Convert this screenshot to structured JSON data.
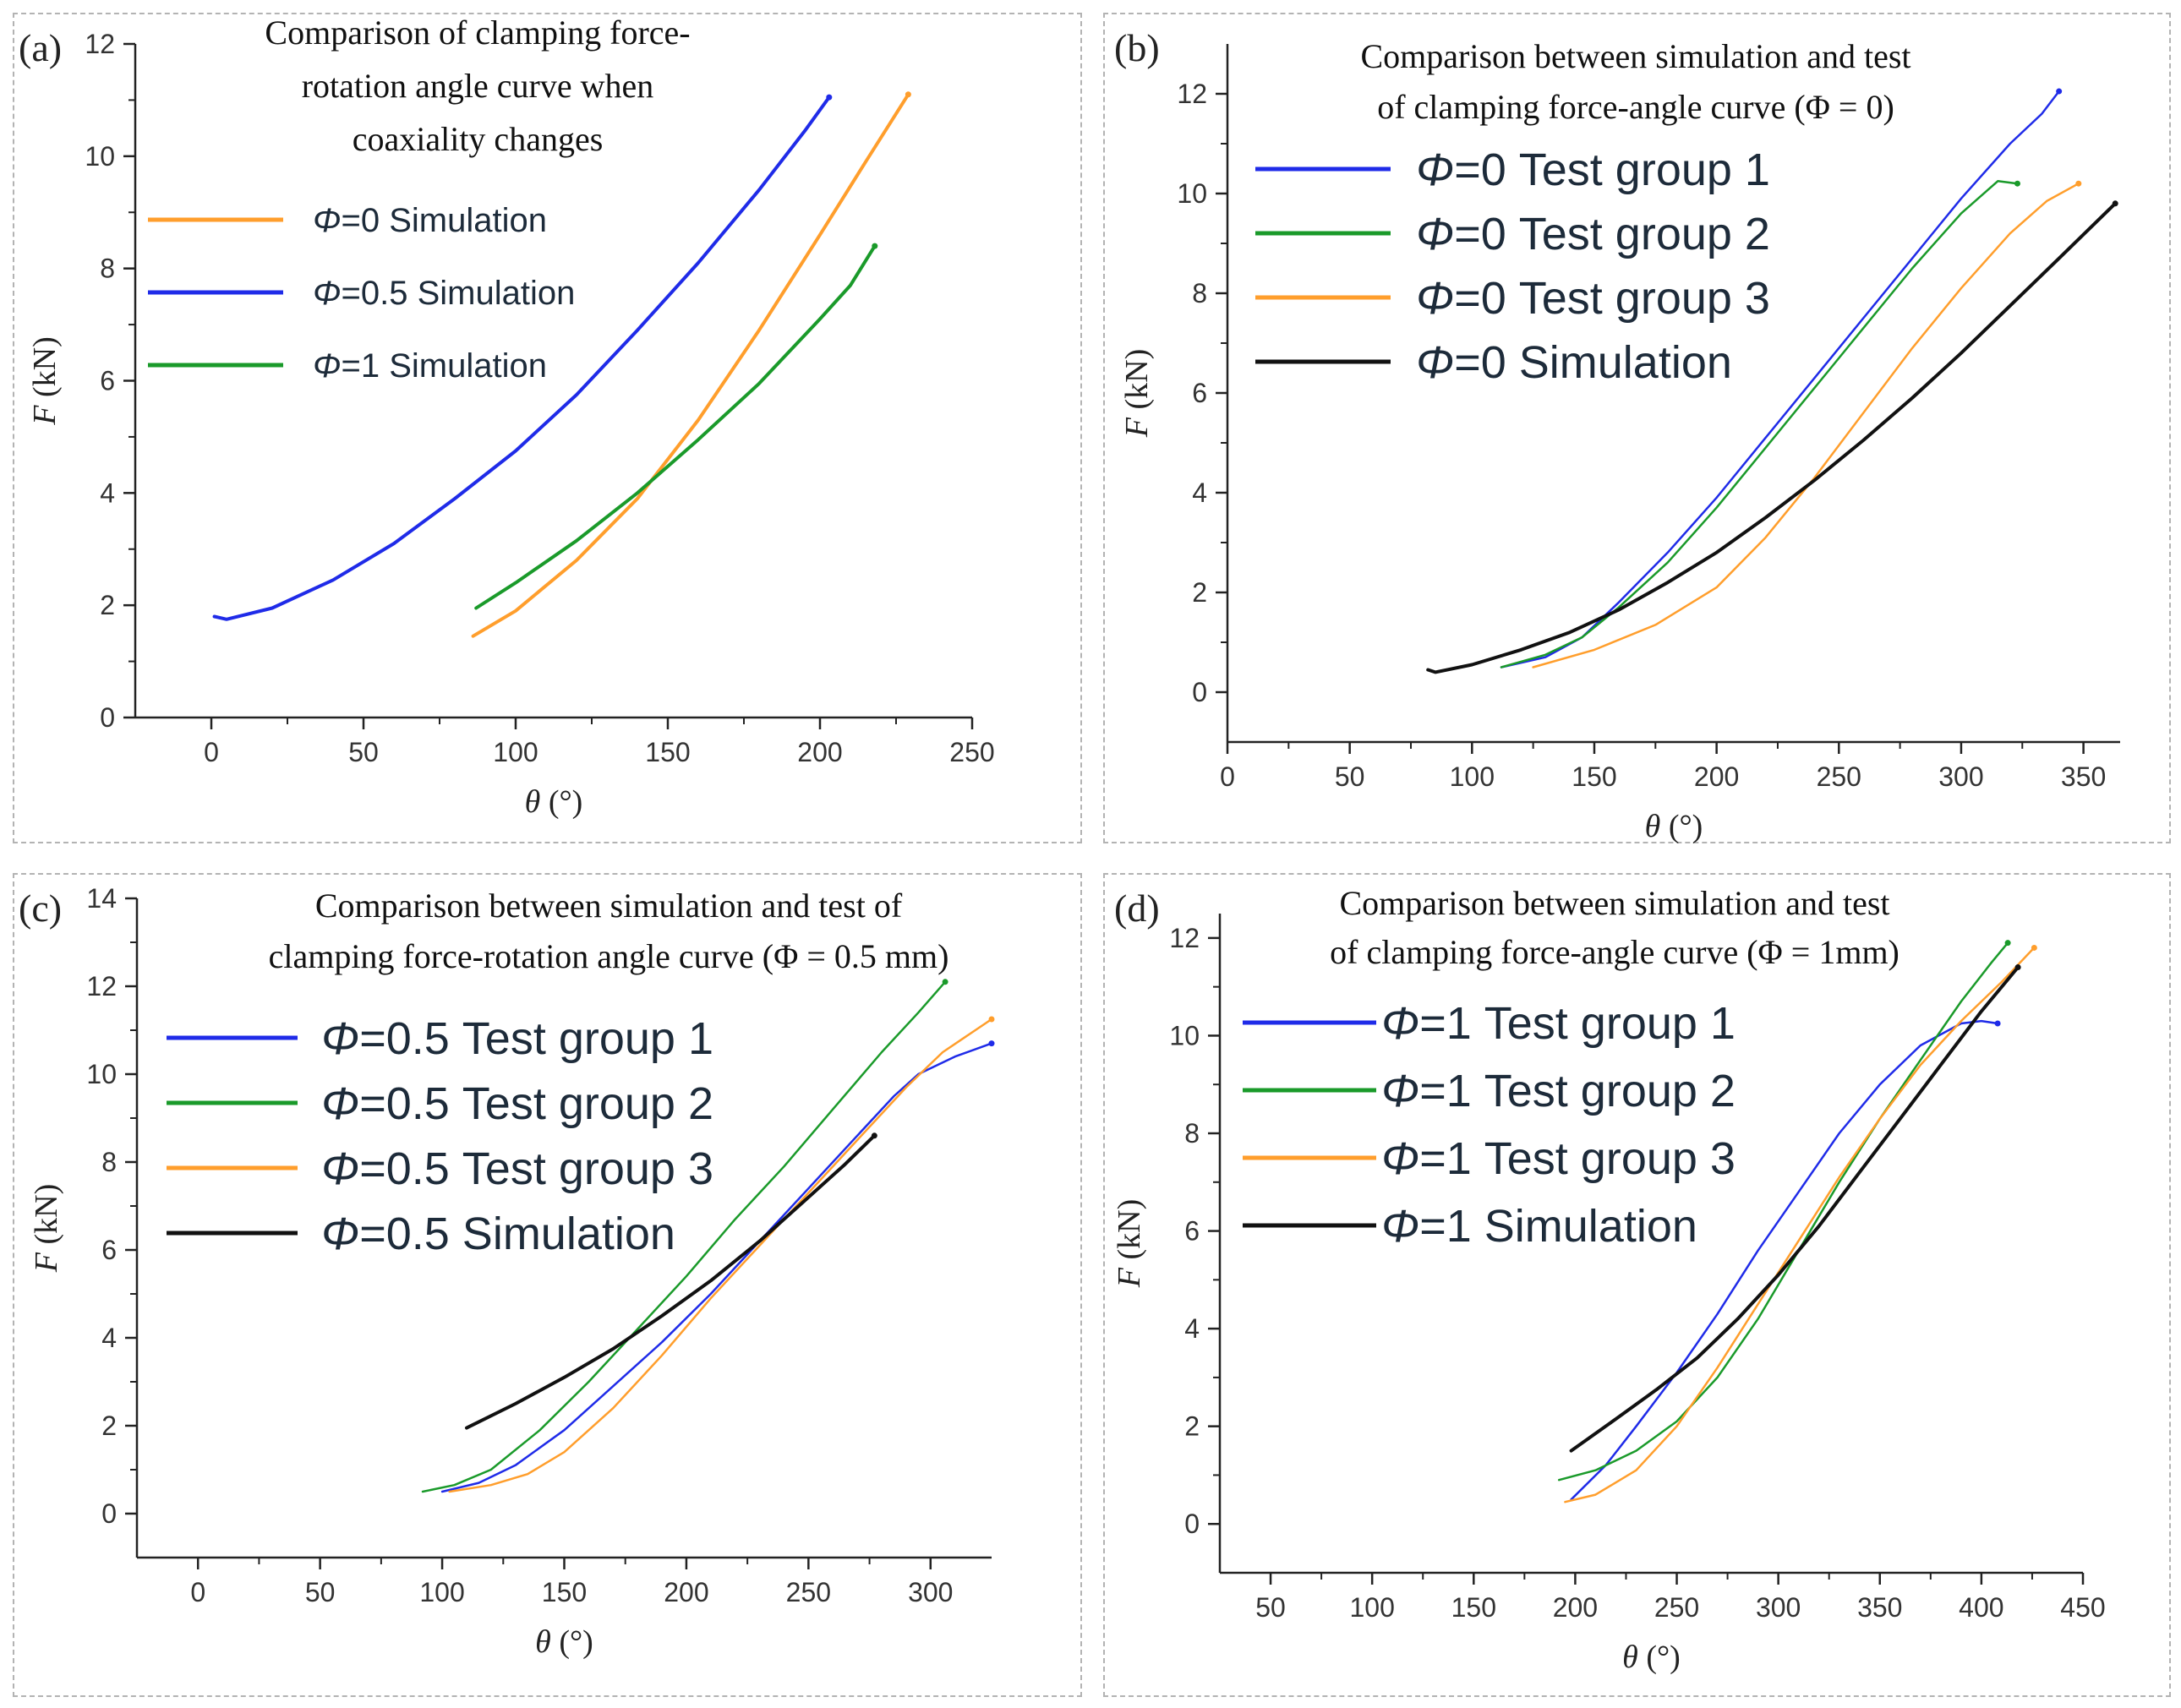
{
  "chart_data": [
    {
      "panel": "(a)",
      "type": "line",
      "title": [
        "Comparison of clamping force-",
        "rotation angle curve when",
        "coaxiality changes"
      ],
      "xlabel": "θ (°)",
      "ylabel": "F (kN)",
      "xlim": [
        -25,
        250
      ],
      "ylim": [
        0,
        12
      ],
      "xticks": [
        0,
        50,
        100,
        150,
        200,
        250
      ],
      "yticks": [
        0,
        2,
        4,
        6,
        8,
        10,
        12
      ],
      "legend_position": "top-left",
      "series": [
        {
          "name": "Φ=0 Simulation",
          "color": "#ff9e2c",
          "points": [
            [
              86,
              1.45
            ],
            [
              100,
              1.9
            ],
            [
              120,
              2.8
            ],
            [
              140,
              3.9
            ],
            [
              160,
              5.3
            ],
            [
              180,
              6.9
            ],
            [
              200,
              8.6
            ],
            [
              215,
              9.9
            ],
            [
              229,
              11.1
            ]
          ]
        },
        {
          "name": "Φ=0.5 Simulation",
          "color": "#1f2be8",
          "points": [
            [
              1,
              1.8
            ],
            [
              5,
              1.75
            ],
            [
              20,
              1.95
            ],
            [
              40,
              2.45
            ],
            [
              60,
              3.1
            ],
            [
              80,
              3.9
            ],
            [
              100,
              4.75
            ],
            [
              120,
              5.75
            ],
            [
              140,
              6.9
            ],
            [
              160,
              8.1
            ],
            [
              180,
              9.4
            ],
            [
              195,
              10.45
            ],
            [
              203,
              11.05
            ]
          ]
        },
        {
          "name": "Φ=1 Simulation",
          "color": "#1a9a2a",
          "points": [
            [
              87,
              1.95
            ],
            [
              100,
              2.4
            ],
            [
              120,
              3.15
            ],
            [
              140,
              4.0
            ],
            [
              160,
              4.95
            ],
            [
              180,
              5.95
            ],
            [
              200,
              7.1
            ],
            [
              210,
              7.7
            ],
            [
              218,
              8.4
            ]
          ]
        }
      ]
    },
    {
      "panel": "(b)",
      "type": "line",
      "title": [
        "Comparison between simulation and test",
        "of clamping force-angle curve (Φ = 0)"
      ],
      "xlabel": "θ (°)",
      "ylabel": "F (kN)",
      "xlim": [
        0,
        365
      ],
      "ylim": [
        -1,
        13
      ],
      "xticks": [
        0,
        50,
        100,
        150,
        200,
        250,
        300,
        350
      ],
      "yticks": [
        0,
        2,
        4,
        6,
        8,
        10,
        12
      ],
      "legend_position": "top-left",
      "series": [
        {
          "name": "Φ=0 Test group 1",
          "color": "#1f2be8",
          "points": [
            [
              112,
              0.5
            ],
            [
              130,
              0.7
            ],
            [
              145,
              1.1
            ],
            [
              160,
              1.8
            ],
            [
              180,
              2.8
            ],
            [
              200,
              3.9
            ],
            [
              220,
              5.1
            ],
            [
              240,
              6.3
            ],
            [
              260,
              7.5
            ],
            [
              280,
              8.7
            ],
            [
              300,
              9.9
            ],
            [
              320,
              11.0
            ],
            [
              333,
              11.6
            ],
            [
              340,
              12.05
            ]
          ]
        },
        {
          "name": "Φ=0 Test group 2",
          "color": "#1a9a2a",
          "points": [
            [
              112,
              0.5
            ],
            [
              130,
              0.75
            ],
            [
              145,
              1.1
            ],
            [
              160,
              1.7
            ],
            [
              180,
              2.6
            ],
            [
              200,
              3.7
            ],
            [
              220,
              4.9
            ],
            [
              240,
              6.1
            ],
            [
              260,
              7.3
            ],
            [
              280,
              8.5
            ],
            [
              300,
              9.6
            ],
            [
              315,
              10.25
            ],
            [
              323,
              10.2
            ]
          ]
        },
        {
          "name": "Φ=0 Test group 3",
          "color": "#ff9e2c",
          "points": [
            [
              125,
              0.5
            ],
            [
              150,
              0.85
            ],
            [
              175,
              1.35
            ],
            [
              200,
              2.1
            ],
            [
              220,
              3.1
            ],
            [
              240,
              4.3
            ],
            [
              260,
              5.6
            ],
            [
              280,
              6.9
            ],
            [
              300,
              8.1
            ],
            [
              320,
              9.2
            ],
            [
              335,
              9.85
            ],
            [
              348,
              10.2
            ]
          ]
        },
        {
          "name": "Φ=0 Simulation",
          "color": "#111111",
          "points": [
            [
              82,
              0.45
            ],
            [
              85,
              0.4
            ],
            [
              100,
              0.55
            ],
            [
              120,
              0.85
            ],
            [
              140,
              1.2
            ],
            [
              160,
              1.65
            ],
            [
              180,
              2.2
            ],
            [
              200,
              2.8
            ],
            [
              220,
              3.5
            ],
            [
              240,
              4.25
            ],
            [
              260,
              5.05
            ],
            [
              280,
              5.9
            ],
            [
              300,
              6.8
            ],
            [
              320,
              7.75
            ],
            [
              340,
              8.7
            ],
            [
              363,
              9.8
            ]
          ]
        }
      ]
    },
    {
      "panel": "(c)",
      "type": "line",
      "title": [
        "Comparison between simulation and test of",
        "clamping force-rotation angle curve (Φ = 0.5 mm)"
      ],
      "xlabel": "θ (°)",
      "ylabel": "F (kN)",
      "xlim": [
        -25,
        325
      ],
      "ylim": [
        -1,
        14
      ],
      "xticks": [
        0,
        50,
        100,
        150,
        200,
        250,
        300
      ],
      "yticks": [
        0,
        2,
        4,
        6,
        8,
        10,
        12,
        14
      ],
      "legend_position": "top-left",
      "series": [
        {
          "name": "Φ=0.5 Test group 1",
          "color": "#1f2be8",
          "points": [
            [
              100,
              0.5
            ],
            [
              115,
              0.7
            ],
            [
              130,
              1.1
            ],
            [
              150,
              1.9
            ],
            [
              170,
              2.9
            ],
            [
              190,
              3.9
            ],
            [
              210,
              5.0
            ],
            [
              230,
              6.2
            ],
            [
              250,
              7.4
            ],
            [
              270,
              8.6
            ],
            [
              285,
              9.5
            ],
            [
              295,
              10.0
            ],
            [
              310,
              10.4
            ],
            [
              325,
              10.7
            ]
          ]
        },
        {
          "name": "Φ=0.5 Test group 2",
          "color": "#1a9a2a",
          "points": [
            [
              92,
              0.5
            ],
            [
              105,
              0.65
            ],
            [
              120,
              1.0
            ],
            [
              140,
              1.9
            ],
            [
              160,
              3.0
            ],
            [
              180,
              4.2
            ],
            [
              200,
              5.4
            ],
            [
              220,
              6.7
            ],
            [
              240,
              7.9
            ],
            [
              260,
              9.2
            ],
            [
              280,
              10.5
            ],
            [
              295,
              11.4
            ],
            [
              306,
              12.1
            ]
          ]
        },
        {
          "name": "Φ=0.5 Test group 3",
          "color": "#ff9e2c",
          "points": [
            [
              103,
              0.5
            ],
            [
              120,
              0.65
            ],
            [
              135,
              0.9
            ],
            [
              150,
              1.4
            ],
            [
              170,
              2.4
            ],
            [
              190,
              3.6
            ],
            [
              210,
              4.9
            ],
            [
              230,
              6.1
            ],
            [
              250,
              7.3
            ],
            [
              270,
              8.5
            ],
            [
              290,
              9.7
            ],
            [
              305,
              10.5
            ],
            [
              325,
              11.25
            ]
          ]
        },
        {
          "name": "Φ=0.5 Simulation",
          "color": "#111111",
          "points": [
            [
              110,
              1.95
            ],
            [
              130,
              2.5
            ],
            [
              150,
              3.1
            ],
            [
              170,
              3.75
            ],
            [
              190,
              4.5
            ],
            [
              210,
              5.3
            ],
            [
              230,
              6.2
            ],
            [
              250,
              7.2
            ],
            [
              265,
              7.95
            ],
            [
              277,
              8.6
            ]
          ]
        }
      ]
    },
    {
      "panel": "(d)",
      "type": "line",
      "title": [
        "Comparison between simulation and test",
        "of clamping force-angle curve (Φ = 1mm)"
      ],
      "xlabel": "θ (°)",
      "ylabel": "F (kN)",
      "xlim": [
        25,
        450
      ],
      "ylim": [
        -1,
        12.5
      ],
      "xticks": [
        50,
        100,
        150,
        200,
        250,
        300,
        350,
        400,
        450
      ],
      "yticks": [
        0,
        2,
        4,
        6,
        8,
        10,
        12
      ],
      "legend_position": "top-left",
      "series": [
        {
          "name": "Φ=1 Test group 1",
          "color": "#1f2be8",
          "points": [
            [
              198,
              0.5
            ],
            [
              215,
              1.2
            ],
            [
              230,
              2.0
            ],
            [
              250,
              3.1
            ],
            [
              270,
              4.3
            ],
            [
              290,
              5.6
            ],
            [
              310,
              6.8
            ],
            [
              330,
              8.0
            ],
            [
              350,
              9.0
            ],
            [
              370,
              9.8
            ],
            [
              390,
              10.25
            ],
            [
              400,
              10.3
            ],
            [
              408,
              10.25
            ]
          ]
        },
        {
          "name": "Φ=1 Test group 2",
          "color": "#1a9a2a",
          "points": [
            [
              192,
              0.9
            ],
            [
              210,
              1.1
            ],
            [
              230,
              1.5
            ],
            [
              250,
              2.1
            ],
            [
              270,
              3.0
            ],
            [
              290,
              4.2
            ],
            [
              310,
              5.6
            ],
            [
              330,
              7.0
            ],
            [
              350,
              8.3
            ],
            [
              370,
              9.5
            ],
            [
              390,
              10.7
            ],
            [
              405,
              11.5
            ],
            [
              413,
              11.9
            ]
          ]
        },
        {
          "name": "Φ=1 Test group 3",
          "color": "#ff9e2c",
          "points": [
            [
              195,
              0.45
            ],
            [
              210,
              0.6
            ],
            [
              230,
              1.1
            ],
            [
              250,
              2.0
            ],
            [
              270,
              3.2
            ],
            [
              290,
              4.5
            ],
            [
              310,
              5.8
            ],
            [
              330,
              7.1
            ],
            [
              350,
              8.3
            ],
            [
              370,
              9.4
            ],
            [
              390,
              10.3
            ],
            [
              410,
              11.1
            ],
            [
              426,
              11.8
            ]
          ]
        },
        {
          "name": "Φ=1 Simulation",
          "color": "#111111",
          "points": [
            [
              198,
              1.5
            ],
            [
              220,
              2.15
            ],
            [
              240,
              2.75
            ],
            [
              260,
              3.4
            ],
            [
              280,
              4.2
            ],
            [
              300,
              5.1
            ],
            [
              320,
              6.1
            ],
            [
              340,
              7.2
            ],
            [
              360,
              8.3
            ],
            [
              380,
              9.4
            ],
            [
              400,
              10.5
            ],
            [
              418,
              11.4
            ]
          ]
        }
      ]
    }
  ],
  "colors": {
    "orange": "#ff9e2c",
    "blue": "#1f2be8",
    "green": "#1a9a2a",
    "black": "#111111",
    "border": "#b3b3b3"
  }
}
